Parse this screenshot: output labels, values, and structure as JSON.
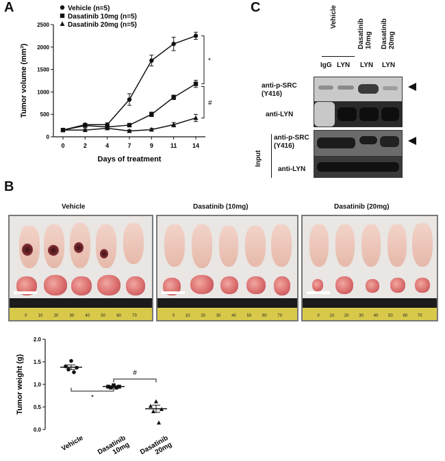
{
  "panels": {
    "a": "A",
    "b": "B",
    "c": "C"
  },
  "chart_data": [
    {
      "type": "line",
      "panel": "A",
      "title": "",
      "xlabel": "Days of treatment",
      "ylabel": "Tumor volume (mm³)",
      "x": [
        0,
        2,
        4,
        7,
        9,
        11,
        14
      ],
      "x_ticks": [
        "0",
        "2",
        "4",
        "7",
        "9",
        "11",
        "14"
      ],
      "y_ticks": [
        "0",
        "500",
        "1000",
        "1500",
        "2000",
        "2500"
      ],
      "ylim": [
        0,
        2500
      ],
      "legend_position": "top-left",
      "series": [
        {
          "name": "Vehicle (n=5)",
          "marker": "circle",
          "values": [
            150,
            270,
            270,
            830,
            1700,
            2070,
            2250
          ],
          "errors": [
            30,
            30,
            40,
            130,
            120,
            150,
            80
          ]
        },
        {
          "name": "Dasatinib 10mg (n=5)",
          "marker": "square",
          "values": [
            150,
            250,
            220,
            260,
            500,
            880,
            1180
          ],
          "errors": [
            25,
            30,
            30,
            30,
            50,
            50,
            80
          ]
        },
        {
          "name": "Dasatinib 20mg (n=5)",
          "marker": "triangle",
          "values": [
            150,
            150,
            190,
            130,
            160,
            270,
            420
          ],
          "errors": [
            25,
            30,
            30,
            25,
            30,
            50,
            80
          ]
        }
      ],
      "annotations": [
        {
          "text": "*",
          "between": [
            "Vehicle (n=5)",
            "Dasatinib 10mg (n=5)"
          ]
        },
        {
          "text": "#",
          "between": [
            "Dasatinib 10mg (n=5)",
            "Dasatinib 20mg (n=5)"
          ]
        }
      ]
    },
    {
      "type": "scatter",
      "panel": "B",
      "title": "",
      "xlabel": "",
      "ylabel": "Tumor weight (g)",
      "categories": [
        "Vehicle",
        "Dasatinib 10mg",
        "Dasatinib 20mg"
      ],
      "y_ticks": [
        "0.0",
        "0.5",
        "1.0",
        "1.5",
        "2.0"
      ],
      "ylim": [
        0,
        2.0
      ],
      "groups": [
        {
          "category": "Vehicle",
          "marker": "circle",
          "points": [
            1.52,
            1.4,
            1.37,
            1.33,
            1.27
          ],
          "mean": 1.38,
          "sem": 0.05
        },
        {
          "category": "Dasatinib 10mg",
          "marker": "square",
          "points": [
            0.98,
            0.95,
            0.95,
            0.93,
            0.93
          ],
          "mean": 0.95,
          "sem": 0.02
        },
        {
          "category": "Dasatinib 20mg",
          "marker": "triangle",
          "points": [
            0.62,
            0.52,
            0.45,
            0.4,
            0.15
          ],
          "mean": 0.46,
          "sem": 0.08
        }
      ],
      "annotations": [
        {
          "text": "*",
          "between": [
            "Vehicle",
            "Dasatinib 10mg"
          ]
        },
        {
          "text": "#",
          "between": [
            "Dasatinib 10mg",
            "Dasatinib 20mg"
          ]
        }
      ]
    }
  ],
  "photos": {
    "titles": [
      "Vehicle",
      "Dasatinib (10mg)",
      "Dasatinib (20mg)"
    ],
    "ruler_numbers": [
      "0",
      "10",
      "20",
      "30",
      "40",
      "50",
      "60",
      "70"
    ]
  },
  "blot": {
    "header_group": "Vehicle",
    "lane_labels": [
      "IgG",
      "LYN",
      "LYN",
      "LYN"
    ],
    "col_headers": [
      "Dasatinib 10mg",
      "Dasatinib 20mg"
    ],
    "ip_rows": [
      "anti-p-SRC (Y416)",
      "anti-LYN"
    ],
    "input_label": "Input",
    "input_rows": [
      "anti-p-SRC (Y416)",
      "anti-LYN"
    ]
  }
}
